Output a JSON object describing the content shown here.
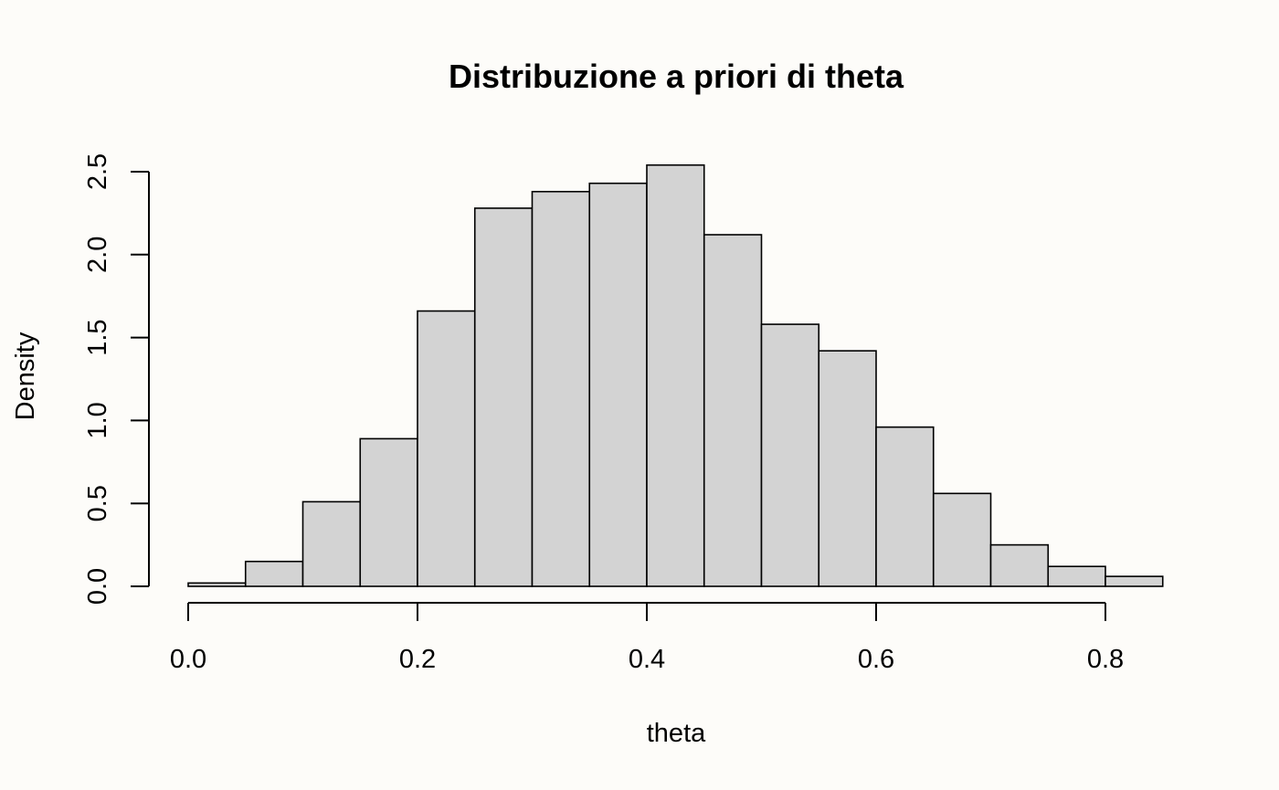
{
  "chart_data": {
    "type": "bar",
    "title": "Distribuzione a priori di theta",
    "xlabel": "theta",
    "ylabel": "Density",
    "xlim": [
      0.0,
      0.85
    ],
    "ylim": [
      0.0,
      2.5
    ],
    "bin_edges": [
      0.0,
      0.05,
      0.1,
      0.15,
      0.2,
      0.25,
      0.3,
      0.35,
      0.4,
      0.45,
      0.5,
      0.55,
      0.6,
      0.65,
      0.7,
      0.75,
      0.8,
      0.85
    ],
    "values": [
      0.02,
      0.15,
      0.51,
      0.89,
      1.66,
      2.28,
      2.38,
      2.43,
      2.54,
      2.12,
      1.58,
      1.42,
      0.96,
      0.56,
      0.25,
      0.12,
      0.06
    ],
    "x_ticks": [
      {
        "value": 0.0,
        "label": "0.0"
      },
      {
        "value": 0.2,
        "label": "0.2"
      },
      {
        "value": 0.4,
        "label": "0.4"
      },
      {
        "value": 0.6,
        "label": "0.6"
      },
      {
        "value": 0.8,
        "label": "0.8"
      }
    ],
    "y_ticks": [
      {
        "value": 0.0,
        "label": "0.0"
      },
      {
        "value": 0.5,
        "label": "0.5"
      },
      {
        "value": 1.0,
        "label": "1.0"
      },
      {
        "value": 1.5,
        "label": "1.5"
      },
      {
        "value": 2.0,
        "label": "2.0"
      },
      {
        "value": 2.5,
        "label": "2.5"
      }
    ],
    "bar_color": "#d3d3d3",
    "edge_color": "#000000",
    "grid": false,
    "legend": "none"
  }
}
